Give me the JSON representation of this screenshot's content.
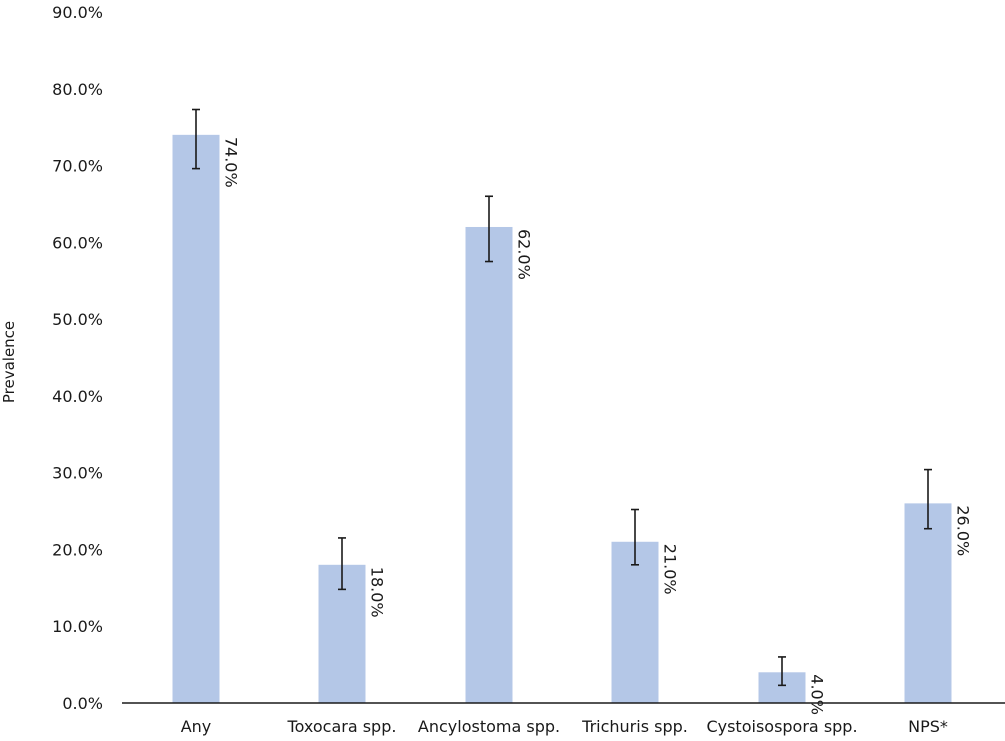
{
  "chart_data": {
    "type": "bar",
    "title": "",
    "xlabel": "",
    "ylabel": "Prevalence",
    "ylim": [
      0,
      90
    ],
    "yticks": [
      "0.0%",
      "10.0%",
      "20.0%",
      "30.0%",
      "40.0%",
      "50.0%",
      "60.0%",
      "70.0%",
      "80.0%",
      "90.0%"
    ],
    "grid": false,
    "legend": null,
    "categories": [
      "Any",
      "Toxocara spp.",
      "Ancylostoma spp.",
      "Trichuris spp.",
      "Cystoisospora spp.",
      "NPS*"
    ],
    "values": [
      74.0,
      18.0,
      62.0,
      21.0,
      4.0,
      26.0
    ],
    "data_labels": [
      "74.0%",
      "18.0%",
      "62.0%",
      "21.0%",
      "4.0%",
      "26.0%"
    ],
    "error_bars": {
      "lower": [
        69.6,
        14.8,
        57.5,
        18.0,
        2.3,
        22.7
      ],
      "upper": [
        77.3,
        21.5,
        66.0,
        25.2,
        6.0,
        30.4
      ]
    },
    "bar_color": "#b4c7e7"
  }
}
